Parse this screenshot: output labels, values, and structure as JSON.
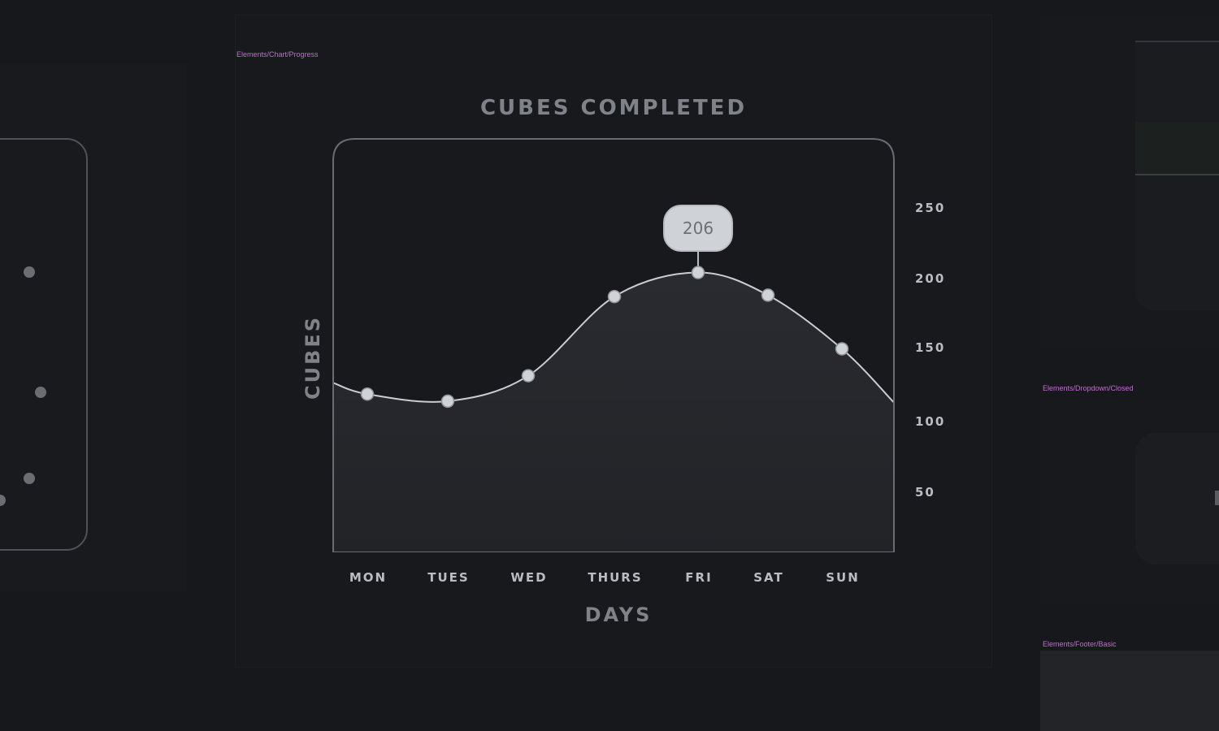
{
  "frames": {
    "progress_label": "Elements/Chart/Progress",
    "dropdown_label": "Elements/Dropdown/Closed",
    "footer_label": "Elements/Footer/Basic"
  },
  "colors": {
    "background": "#17181c",
    "line": "#c9ccd1",
    "marker": "#cfd3d8",
    "axis": "#6a6c71",
    "frame_label": "#c56ad6"
  },
  "tooltip": {
    "value": "206"
  },
  "chart_data": {
    "type": "area",
    "title": "CUBES COMPLETED",
    "xlabel": "DAYS",
    "ylabel": "CUBES",
    "categories": [
      "MON",
      "TUES",
      "WED",
      "THURS",
      "FRI",
      "SAT",
      "SUN"
    ],
    "values": [
      120,
      115,
      133,
      189,
      206,
      190,
      152
    ],
    "y_ticks": [
      "250",
      "200",
      "150",
      "100",
      "50"
    ],
    "ylim": [
      0,
      280
    ],
    "y_axis_position": "right",
    "grid": false,
    "highlighted_point": "FRI"
  }
}
